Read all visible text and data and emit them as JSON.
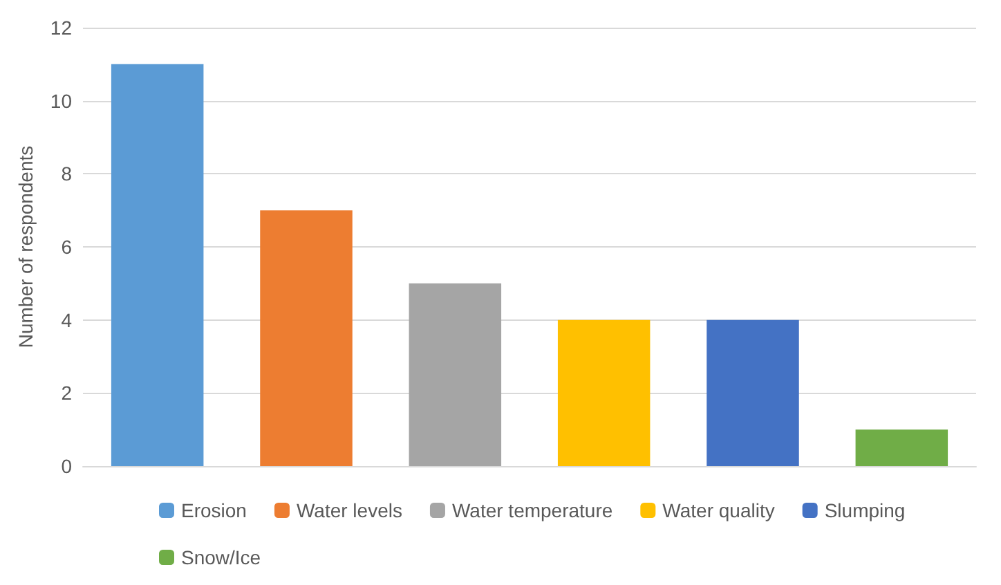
{
  "chart_data": {
    "type": "bar",
    "ylabel": "Number of respondents",
    "categories": [
      null,
      null,
      null,
      null,
      null,
      null
    ],
    "series": [
      {
        "name": "Erosion",
        "color": "#5b9bd5",
        "values": [
          11,
          null,
          null,
          null,
          null,
          null
        ]
      },
      {
        "name": "Water levels",
        "color": "#ed7d31",
        "values": [
          null,
          7,
          null,
          null,
          null,
          null
        ]
      },
      {
        "name": "Water temperature",
        "color": "#a5a5a5",
        "values": [
          null,
          null,
          5,
          null,
          null,
          null
        ]
      },
      {
        "name": "Water quality",
        "color": "#ffc000",
        "values": [
          null,
          null,
          null,
          4,
          null,
          null
        ]
      },
      {
        "name": "Slumping",
        "color": "#4472c4",
        "values": [
          null,
          null,
          null,
          null,
          4,
          null
        ]
      },
      {
        "name": "Snow/Ice",
        "color": "#70ad47",
        "values": [
          null,
          null,
          null,
          null,
          null,
          1
        ]
      }
    ],
    "ylim": [
      0,
      12
    ],
    "yticks": [
      0,
      2,
      4,
      6,
      8,
      10,
      12
    ],
    "grid": "y",
    "legend": "bottom"
  }
}
